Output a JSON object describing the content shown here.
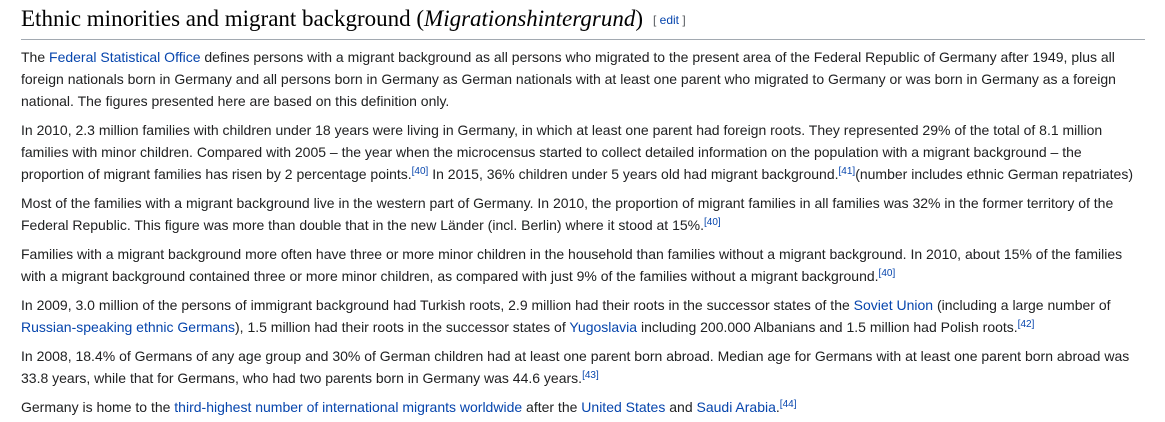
{
  "section": {
    "title_pre": "Ethnic minorities and migrant background (",
    "title_italic": "Migrationshintergrund",
    "title_post": ")",
    "edit_open": "[ ",
    "edit_label": "edit",
    "edit_close": " ]"
  },
  "p1": {
    "t0": "The ",
    "l0": "Federal Statistical Office",
    "t1": " defines persons with a migrant background as all persons who migrated to the present area of the Federal Republic of Germany after 1949, plus all foreign nationals born in Germany and all persons born in Germany as German nationals with at least one parent who migrated to Germany or was born in Germany as a foreign national. The figures presented here are based on this definition only."
  },
  "p2": {
    "t0": "In 2010, 2.3 million families with children under 18 years were living in Germany, in which at least one parent had foreign roots. They represented 29% of the total of 8.1 million families with minor children. Compared with 2005 – the year when the microcensus started to collect detailed information on the population with a migrant background – the proportion of migrant families has risen by 2 percentage points.",
    "r0": "[40]",
    "t1": " In 2015, 36% children under 5 years old had migrant background.",
    "r1": "[41]",
    "t2": "(number includes ethnic German repatriates)"
  },
  "p3": {
    "t0": "Most of the families with a migrant background live in the western part of Germany. In 2010, the proportion of migrant families in all families was 32% in the former territory of the Federal Republic. This figure was more than double that in the new Länder (incl. Berlin) where it stood at 15%.",
    "r0": "[40]"
  },
  "p4": {
    "t0": "Families with a migrant background more often have three or more minor children in the household than families without a migrant background. In 2010, about 15% of the families with a migrant background contained three or more minor children, as compared with just 9% of the families without a migrant background.",
    "r0": "[40]"
  },
  "p5": {
    "t0": "In 2009, 3.0 million of the persons of immigrant background had Turkish roots, 2.9 million had their roots in the successor states of the ",
    "l0": "Soviet Union",
    "t1": " (including a large number of ",
    "l1": "Russian-speaking ethnic Germans",
    "t2": "), 1.5 million had their roots in the successor states of ",
    "l2": "Yugoslavia",
    "t3": " including 200.000 Albanians and 1.5 million had Polish roots.",
    "r0": "[42]"
  },
  "p6": {
    "t0": "In 2008, 18.4% of Germans of any age group and 30% of German children had at least one parent born abroad. Median age for Germans with at least one parent born abroad was 33.8 years, while that for Germans, who had two parents born in Germany was 44.6 years.",
    "r0": "[43]"
  },
  "p7": {
    "t0": "Germany is home to the ",
    "l0": "third-highest number of international migrants worldwide",
    "t1": " after the ",
    "l1": "United States",
    "t2": " and ",
    "l2": "Saudi Arabia",
    "t3": ".",
    "r0": "[44]"
  },
  "colors": {
    "link": "#0645ad",
    "text": "#202122",
    "rule": "#a2a9b1"
  }
}
